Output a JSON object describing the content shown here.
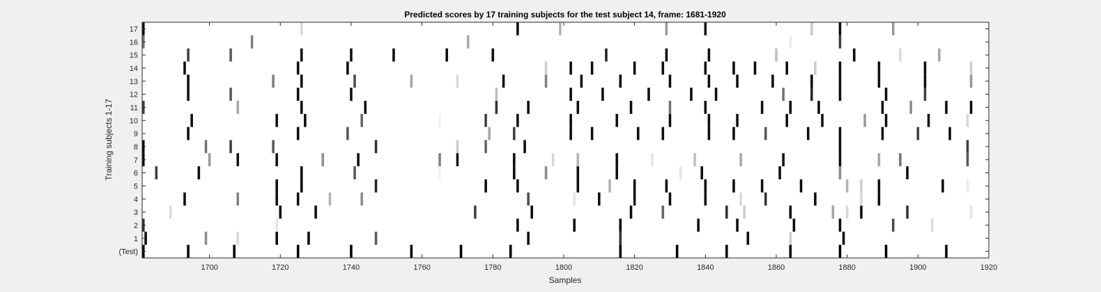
{
  "chart_data": {
    "type": "heatmap",
    "title": "Predicted scores by 17 training subjects for the test subject 14, frame: 1681-1920",
    "xlabel": "Samples",
    "ylabel": "Training subjects 1-17",
    "xlim": [
      1681,
      1920
    ],
    "x_ticks": [
      1700,
      1720,
      1740,
      1760,
      1780,
      1800,
      1820,
      1840,
      1860,
      1880,
      1900,
      1920
    ],
    "row_labels": [
      "(Test)",
      "1",
      "2",
      "3",
      "4",
      "5",
      "6",
      "7",
      "8",
      "9",
      "10",
      "11",
      "12",
      "13",
      "14",
      "15",
      "16",
      "17"
    ],
    "colormap": "gray (white = 0, black = 1)",
    "background": "#f0f0f0",
    "rows": [
      {
        "label": "(Test)",
        "events": [
          [
            1681,
            1
          ],
          [
            1694,
            1
          ],
          [
            1707,
            1
          ],
          [
            1725,
            1
          ],
          [
            1740,
            1
          ],
          [
            1757,
            1
          ],
          [
            1771,
            1
          ],
          [
            1785,
            1
          ],
          [
            1816,
            1
          ],
          [
            1832,
            1
          ],
          [
            1846,
            1
          ],
          [
            1864,
            1
          ],
          [
            1878,
            1
          ],
          [
            1891,
            1
          ],
          [
            1908,
            1
          ]
        ]
      },
      {
        "label": "1",
        "events": [
          [
            1682,
            0.95
          ],
          [
            1699,
            0.45
          ],
          [
            1708,
            0.15
          ],
          [
            1719,
            0.95
          ],
          [
            1728,
            0.95
          ],
          [
            1747,
            0.65
          ],
          [
            1790,
            0.95
          ],
          [
            1816,
            0.8
          ],
          [
            1852,
            0.95
          ],
          [
            1864,
            0.2
          ],
          [
            1879,
            0.95
          ]
        ]
      },
      {
        "label": "2",
        "events": [
          [
            1681,
            0.8
          ],
          [
            1719,
            0.1
          ],
          [
            1787,
            0.95
          ],
          [
            1803,
            0.95
          ],
          [
            1816,
            0.95
          ],
          [
            1838,
            0.95
          ],
          [
            1849,
            0.95
          ],
          [
            1865,
            0.95
          ],
          [
            1878,
            0.95
          ],
          [
            1893,
            0.7
          ],
          [
            1904,
            0.15
          ]
        ]
      },
      {
        "label": "3",
        "events": [
          [
            1689,
            0.15
          ],
          [
            1720,
            0.95
          ],
          [
            1730,
            0.95
          ],
          [
            1775,
            0.75
          ],
          [
            1791,
            0.95
          ],
          [
            1819,
            0.95
          ],
          [
            1828,
            0.6
          ],
          [
            1846,
            0.8
          ],
          [
            1851,
            0.2
          ],
          [
            1864,
            0.95
          ],
          [
            1876,
            0.35
          ],
          [
            1880,
            0.15
          ],
          [
            1884,
            0.95
          ],
          [
            1897,
            0.8
          ],
          [
            1915,
            0.1
          ]
        ]
      },
      {
        "label": "4",
        "events": [
          [
            1693,
            0.95
          ],
          [
            1708,
            0.5
          ],
          [
            1719,
            0.95
          ],
          [
            1725,
            0.95
          ],
          [
            1734,
            0.3
          ],
          [
            1743,
            0.45
          ],
          [
            1790,
            0.7
          ],
          [
            1803,
            0.1
          ],
          [
            1810,
            0.95
          ],
          [
            1820,
            0.95
          ],
          [
            1830,
            0.95
          ],
          [
            1840,
            0.95
          ],
          [
            1850,
            0.15
          ],
          [
            1857,
            0.8
          ],
          [
            1871,
            0.95
          ],
          [
            1884,
            0.15
          ],
          [
            1889,
            0.95
          ]
        ]
      },
      {
        "label": "5",
        "events": [
          [
            1719,
            0.95
          ],
          [
            1726,
            0.95
          ],
          [
            1747,
            0.85
          ],
          [
            1778,
            0.95
          ],
          [
            1787,
            0.95
          ],
          [
            1804,
            0.95
          ],
          [
            1813,
            0.3
          ],
          [
            1820,
            0.95
          ],
          [
            1829,
            0.95
          ],
          [
            1840,
            0.95
          ],
          [
            1848,
            0.95
          ],
          [
            1856,
            0.95
          ],
          [
            1867,
            0.95
          ],
          [
            1880,
            0.3
          ],
          [
            1884,
            0.2
          ],
          [
            1889,
            0.95
          ],
          [
            1907,
            0.95
          ],
          [
            1914,
            0.08
          ]
        ]
      },
      {
        "label": "6",
        "events": [
          [
            1685,
            0.75
          ],
          [
            1697,
            0.95
          ],
          [
            1726,
            0.95
          ],
          [
            1741,
            0.65
          ],
          [
            1765,
            0.05
          ],
          [
            1786,
            0.95
          ],
          [
            1795,
            0.45
          ],
          [
            1804,
            0.95
          ],
          [
            1815,
            0.95
          ],
          [
            1833,
            0.1
          ],
          [
            1839,
            0.95
          ],
          [
            1861,
            0.95
          ],
          [
            1878,
            0.45
          ],
          [
            1897,
            0.95
          ]
        ]
      },
      {
        "label": "7",
        "events": [
          [
            1681,
            0.95
          ],
          [
            1700,
            0.4
          ],
          [
            1708,
            0.95
          ],
          [
            1719,
            0.95
          ],
          [
            1732,
            0.45
          ],
          [
            1742,
            0.95
          ],
          [
            1765,
            0.5
          ],
          [
            1770,
            0.95
          ],
          [
            1786,
            0.95
          ],
          [
            1797,
            0.15
          ],
          [
            1804,
            0.3
          ],
          [
            1815,
            0.95
          ],
          [
            1825,
            0.1
          ],
          [
            1837,
            0.25
          ],
          [
            1850,
            0.35
          ],
          [
            1862,
            0.95
          ],
          [
            1878,
            0.95
          ],
          [
            1889,
            0.35
          ],
          [
            1895,
            0.55
          ],
          [
            1914,
            0.65
          ]
        ]
      },
      {
        "label": "8",
        "events": [
          [
            1681,
            0.95
          ],
          [
            1699,
            0.55
          ],
          [
            1706,
            0.75
          ],
          [
            1718,
            0.65
          ],
          [
            1747,
            0.8
          ],
          [
            1770,
            0.2
          ],
          [
            1778,
            0.6
          ],
          [
            1789,
            0.95
          ],
          [
            1878,
            0.95
          ],
          [
            1914,
            0.75
          ]
        ]
      },
      {
        "label": "9",
        "events": [
          [
            1694,
            0.95
          ],
          [
            1725,
            0.95
          ],
          [
            1739,
            0.65
          ],
          [
            1779,
            0.35
          ],
          [
            1786,
            0.75
          ],
          [
            1802,
            0.95
          ],
          [
            1808,
            0.95
          ],
          [
            1821,
            0.95
          ],
          [
            1828,
            0.95
          ],
          [
            1841,
            0.95
          ],
          [
            1848,
            0.95
          ],
          [
            1857,
            0.65
          ],
          [
            1869,
            0.95
          ],
          [
            1878,
            0.95
          ],
          [
            1890,
            0.95
          ],
          [
            1900,
            0.75
          ],
          [
            1909,
            0.95
          ]
        ]
      },
      {
        "label": "10",
        "events": [
          [
            1695,
            0.95
          ],
          [
            1719,
            0.95
          ],
          [
            1727,
            0.95
          ],
          [
            1743,
            0.6
          ],
          [
            1765,
            0.05
          ],
          [
            1778,
            0.75
          ],
          [
            1787,
            0.95
          ],
          [
            1802,
            0.95
          ],
          [
            1815,
            0.95
          ],
          [
            1830,
            0.95
          ],
          [
            1841,
            0.95
          ],
          [
            1849,
            0.95
          ],
          [
            1863,
            0.95
          ],
          [
            1873,
            0.95
          ],
          [
            1885,
            0.4
          ],
          [
            1891,
            0.95
          ],
          [
            1903,
            0.95
          ],
          [
            1914,
            0.15
          ]
        ]
      },
      {
        "label": "11",
        "events": [
          [
            1681,
            0.75
          ],
          [
            1708,
            0.35
          ],
          [
            1726,
            0.95
          ],
          [
            1744,
            0.95
          ],
          [
            1781,
            0.8
          ],
          [
            1790,
            0.95
          ],
          [
            1804,
            0.95
          ],
          [
            1819,
            0.95
          ],
          [
            1830,
            0.55
          ],
          [
            1840,
            0.95
          ],
          [
            1856,
            0.95
          ],
          [
            1864,
            0.95
          ],
          [
            1872,
            0.95
          ],
          [
            1890,
            0.95
          ],
          [
            1898,
            0.45
          ],
          [
            1908,
            0.95
          ],
          [
            1915,
            0.95
          ]
        ]
      },
      {
        "label": "12",
        "events": [
          [
            1694,
            0.95
          ],
          [
            1706,
            0.65
          ],
          [
            1725,
            0.95
          ],
          [
            1740,
            0.95
          ],
          [
            1781,
            0.25
          ],
          [
            1802,
            0.95
          ],
          [
            1811,
            0.95
          ],
          [
            1824,
            0.95
          ],
          [
            1836,
            0.95
          ],
          [
            1843,
            0.95
          ],
          [
            1862,
            0.55
          ],
          [
            1870,
            0.85
          ],
          [
            1878,
            0.95
          ],
          [
            1891,
            0.95
          ],
          [
            1902,
            0.75
          ]
        ]
      },
      {
        "label": "13",
        "events": [
          [
            1694,
            0.95
          ],
          [
            1718,
            0.5
          ],
          [
            1726,
            0.95
          ],
          [
            1741,
            0.7
          ],
          [
            1757,
            0.35
          ],
          [
            1770,
            0.15
          ],
          [
            1783,
            0.95
          ],
          [
            1795,
            0.5
          ],
          [
            1805,
            0.95
          ],
          [
            1816,
            0.95
          ],
          [
            1830,
            0.95
          ],
          [
            1841,
            0.95
          ],
          [
            1849,
            0.95
          ],
          [
            1859,
            0.95
          ],
          [
            1870,
            0.95
          ],
          [
            1878,
            0.95
          ],
          [
            1889,
            0.95
          ],
          [
            1902,
            0.95
          ],
          [
            1915,
            0.4
          ]
        ]
      },
      {
        "label": "14",
        "events": [
          [
            1693,
            0.95
          ],
          [
            1725,
            0.95
          ],
          [
            1739,
            0.95
          ],
          [
            1795,
            0.2
          ],
          [
            1802,
            0.95
          ],
          [
            1808,
            0.95
          ],
          [
            1820,
            0.95
          ],
          [
            1828,
            0.95
          ],
          [
            1840,
            0.95
          ],
          [
            1848,
            0.95
          ],
          [
            1854,
            0.95
          ],
          [
            1863,
            0.95
          ],
          [
            1871,
            0.2
          ],
          [
            1878,
            0.95
          ],
          [
            1889,
            0.95
          ],
          [
            1902,
            0.95
          ],
          [
            1915,
            0.2
          ]
        ]
      },
      {
        "label": "15",
        "events": [
          [
            1694,
            0.75
          ],
          [
            1706,
            0.65
          ],
          [
            1726,
            0.95
          ],
          [
            1740,
            0.95
          ],
          [
            1752,
            0.95
          ],
          [
            1767,
            0.95
          ],
          [
            1780,
            0.95
          ],
          [
            1812,
            0.85
          ],
          [
            1829,
            0.95
          ],
          [
            1841,
            0.95
          ],
          [
            1860,
            0.25
          ],
          [
            1882,
            0.95
          ],
          [
            1895,
            0.15
          ],
          [
            1906,
            0.35
          ]
        ]
      },
      {
        "label": "16",
        "events": [
          [
            1681,
            0.55
          ],
          [
            1712,
            0.5
          ],
          [
            1773,
            0.35
          ],
          [
            1864,
            0.08
          ],
          [
            1878,
            0.75
          ]
        ]
      },
      {
        "label": "17",
        "events": [
          [
            1681,
            0.95
          ],
          [
            1726,
            0.15
          ],
          [
            1787,
            0.95
          ],
          [
            1799,
            0.3
          ],
          [
            1829,
            0.4
          ],
          [
            1840,
            0.95
          ],
          [
            1870,
            0.2
          ],
          [
            1878,
            0.95
          ],
          [
            1893,
            0.4
          ]
        ]
      }
    ]
  }
}
